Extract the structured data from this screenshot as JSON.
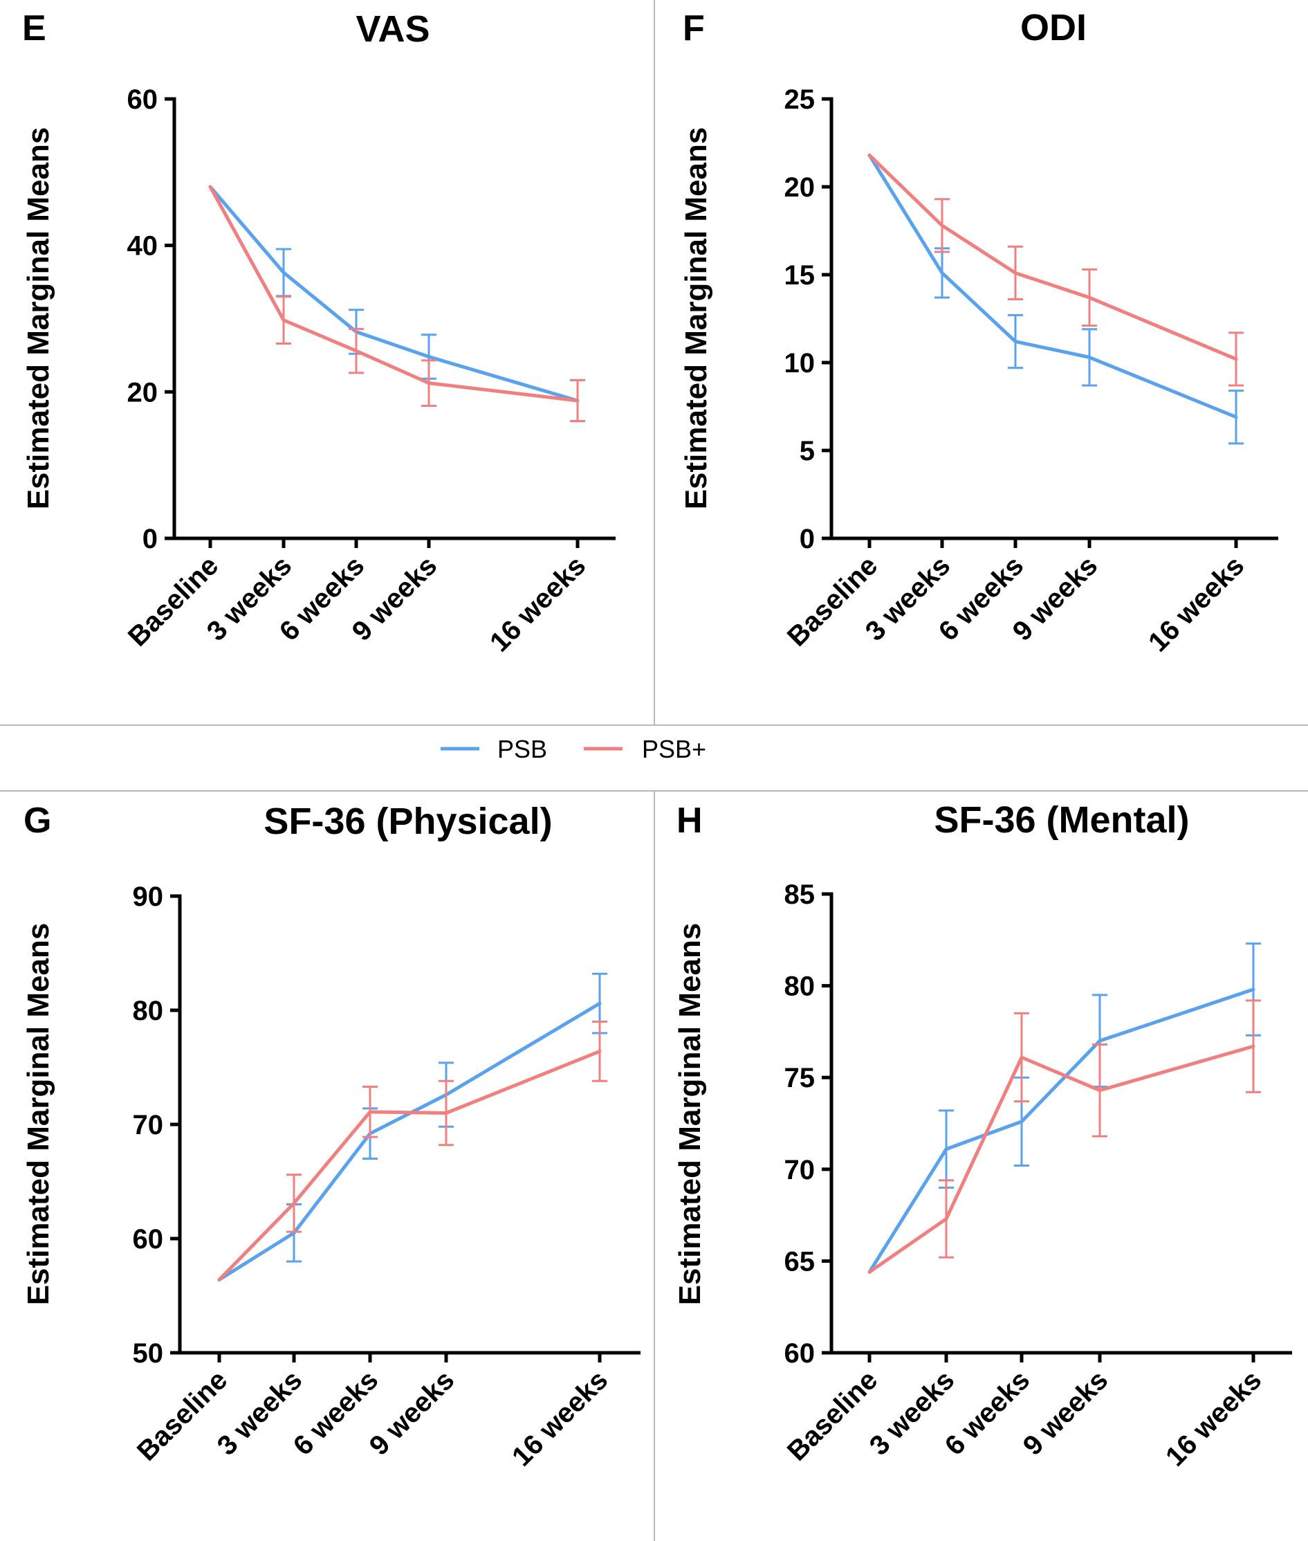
{
  "colors": {
    "PSB": "#5aa2ee",
    "PSB+": "#f08080",
    "axis": "#000000",
    "divider": "#b8b8b8"
  },
  "legend": [
    {
      "label": "PSB",
      "color": "#5aa2ee"
    },
    {
      "label": "PSB+",
      "color": "#f08080"
    }
  ],
  "chart_data": [
    {
      "panel": "E",
      "title": "VAS",
      "type": "line",
      "ylabel": "Estimated Marginal Means",
      "xlabel": "",
      "categories": [
        "Baseline",
        "3 weeks",
        "6 weeks",
        "9 weeks",
        "16 weeks"
      ],
      "x": [
        0,
        3,
        6,
        9,
        16
      ],
      "ylim": [
        0,
        60
      ],
      "yticks": [
        0,
        20,
        40,
        60
      ],
      "yticklabels": [
        "0",
        "20",
        "40",
        "60"
      ],
      "series": [
        {
          "name": "PSB",
          "values": [
            48,
            36.3,
            28.2,
            24.8,
            18.8
          ],
          "err": [
            0,
            3.2,
            3.0,
            3.0,
            2.8
          ]
        },
        {
          "name": "PSB+",
          "values": [
            48,
            29.8,
            25.6,
            21.2,
            18.8
          ],
          "err": [
            0,
            3.2,
            3.0,
            3.1,
            2.8
          ]
        }
      ]
    },
    {
      "panel": "F",
      "title": "ODI",
      "type": "line",
      "ylabel": "Estimated Marginal Means",
      "xlabel": "",
      "categories": [
        "Baseline",
        "3 weeks",
        "6 weeks",
        "9 weeks",
        "16 weeks"
      ],
      "x": [
        0,
        3,
        6,
        9,
        16
      ],
      "ylim": [
        0,
        25
      ],
      "yticks": [
        0,
        5,
        10,
        15,
        20,
        25
      ],
      "yticklabels": [
        "0",
        "5",
        "10",
        "15",
        "20",
        "25"
      ],
      "series": [
        {
          "name": "PSB",
          "values": [
            21.8,
            15.1,
            11.2,
            10.3,
            6.9
          ],
          "err": [
            0,
            1.4,
            1.5,
            1.6,
            1.5
          ]
        },
        {
          "name": "PSB+",
          "values": [
            21.8,
            17.8,
            15.1,
            13.7,
            10.2
          ],
          "err": [
            0,
            1.5,
            1.5,
            1.6,
            1.5
          ]
        }
      ]
    },
    {
      "panel": "G",
      "title": "SF-36 (Physical)",
      "type": "line",
      "ylabel": "Estimated Marginal Means",
      "xlabel": "",
      "categories": [
        "Baseline",
        "3 weeks",
        "6 weeks",
        "9 weeks",
        "16 weeks"
      ],
      "x": [
        0,
        3,
        6,
        9,
        16
      ],
      "ylim": [
        50,
        90
      ],
      "yticks": [
        50,
        60,
        70,
        80,
        90
      ],
      "yticklabels": [
        "50",
        "60",
        "70",
        "80",
        "90"
      ],
      "series": [
        {
          "name": "PSB",
          "values": [
            56.4,
            60.5,
            69.2,
            72.6,
            80.6
          ],
          "err": [
            0,
            2.5,
            2.2,
            2.8,
            2.6
          ]
        },
        {
          "name": "PSB+",
          "values": [
            56.4,
            63.1,
            71.1,
            71.0,
            76.4
          ],
          "err": [
            0,
            2.5,
            2.2,
            2.8,
            2.6
          ]
        }
      ]
    },
    {
      "panel": "H",
      "title": "SF-36 (Mental)",
      "type": "line",
      "ylabel": "Estimated Marginal Means",
      "xlabel": "",
      "categories": [
        "Baseline",
        "3 weeks",
        "6 weeks",
        "9 weeks",
        "16 weeks"
      ],
      "x": [
        0,
        3,
        6,
        9,
        16
      ],
      "ylim": [
        60,
        85
      ],
      "yticks": [
        60,
        65,
        70,
        75,
        80,
        85
      ],
      "yticklabels": [
        "60",
        "65",
        "70",
        "75",
        "80",
        "85"
      ],
      "series": [
        {
          "name": "PSB",
          "values": [
            64.4,
            71.1,
            72.6,
            77.0,
            79.8
          ],
          "err": [
            0,
            2.1,
            2.4,
            2.5,
            2.5
          ]
        },
        {
          "name": "PSB+",
          "values": [
            64.4,
            67.3,
            76.1,
            74.3,
            76.7
          ],
          "err": [
            0,
            2.1,
            2.4,
            2.5,
            2.5
          ]
        }
      ]
    }
  ]
}
